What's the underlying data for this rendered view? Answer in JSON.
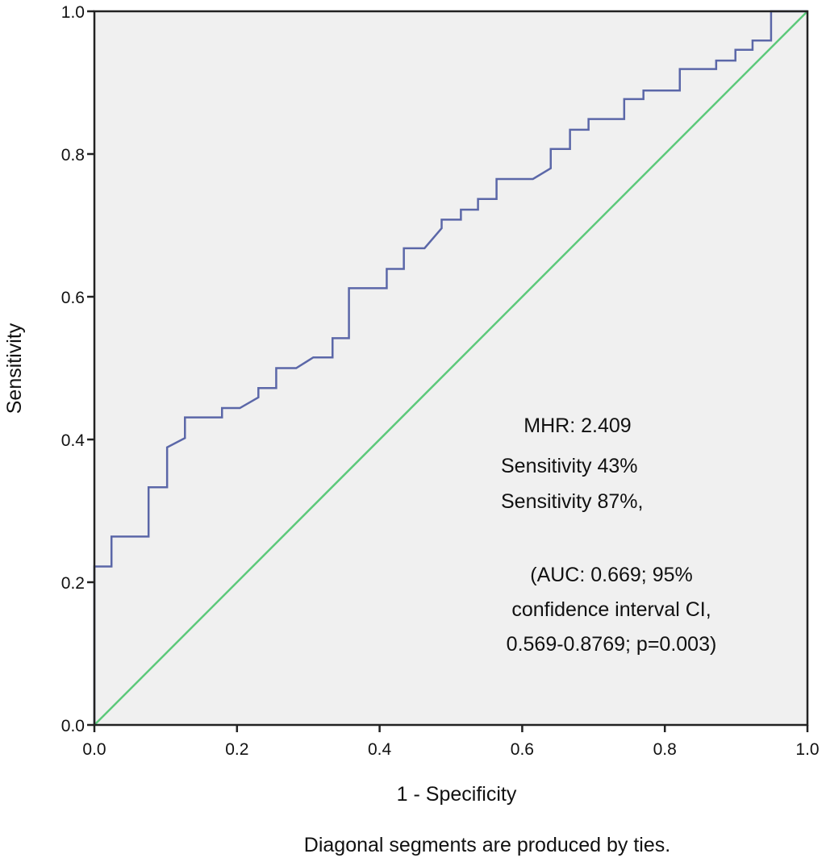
{
  "chart_data": {
    "type": "line",
    "title": "",
    "xlabel": "1 - Specificity",
    "ylabel": "Sensitivity",
    "xlim": [
      0.0,
      1.0
    ],
    "ylim": [
      0.0,
      1.0
    ],
    "xticks": [
      "0.0",
      "0.2",
      "0.4",
      "0.6",
      "0.8",
      "1.0"
    ],
    "yticks": [
      "0.0",
      "0.2",
      "0.4",
      "0.6",
      "0.8",
      "1.0"
    ],
    "grid": false,
    "colors": {
      "roc": "#5b67a8",
      "reference": "#5cc97a",
      "plot_background": "#f0f0f0",
      "axis": "#222222"
    },
    "series": [
      {
        "name": "ROC curve",
        "points": [
          [
            0.0,
            0.0
          ],
          [
            0.0,
            0.222
          ],
          [
            0.024,
            0.222
          ],
          [
            0.024,
            0.264
          ],
          [
            0.076,
            0.264
          ],
          [
            0.076,
            0.333
          ],
          [
            0.102,
            0.333
          ],
          [
            0.102,
            0.389
          ],
          [
            0.127,
            0.402
          ],
          [
            0.127,
            0.431
          ],
          [
            0.179,
            0.431
          ],
          [
            0.179,
            0.444
          ],
          [
            0.204,
            0.444
          ],
          [
            0.23,
            0.459
          ],
          [
            0.23,
            0.472
          ],
          [
            0.255,
            0.472
          ],
          [
            0.255,
            0.5
          ],
          [
            0.283,
            0.5
          ],
          [
            0.307,
            0.515
          ],
          [
            0.334,
            0.515
          ],
          [
            0.334,
            0.542
          ],
          [
            0.357,
            0.542
          ],
          [
            0.357,
            0.612
          ],
          [
            0.41,
            0.612
          ],
          [
            0.41,
            0.639
          ],
          [
            0.434,
            0.639
          ],
          [
            0.434,
            0.668
          ],
          [
            0.463,
            0.668
          ],
          [
            0.487,
            0.696
          ],
          [
            0.487,
            0.708
          ],
          [
            0.514,
            0.708
          ],
          [
            0.514,
            0.722
          ],
          [
            0.538,
            0.722
          ],
          [
            0.538,
            0.737
          ],
          [
            0.564,
            0.737
          ],
          [
            0.564,
            0.765
          ],
          [
            0.615,
            0.765
          ],
          [
            0.64,
            0.78
          ],
          [
            0.64,
            0.807
          ],
          [
            0.667,
            0.807
          ],
          [
            0.667,
            0.834
          ],
          [
            0.693,
            0.834
          ],
          [
            0.693,
            0.849
          ],
          [
            0.743,
            0.849
          ],
          [
            0.743,
            0.877
          ],
          [
            0.77,
            0.877
          ],
          [
            0.77,
            0.889
          ],
          [
            0.821,
            0.889
          ],
          [
            0.821,
            0.919
          ],
          [
            0.872,
            0.919
          ],
          [
            0.872,
            0.931
          ],
          [
            0.899,
            0.931
          ],
          [
            0.899,
            0.946
          ],
          [
            0.923,
            0.946
          ],
          [
            0.923,
            0.959
          ],
          [
            0.949,
            0.959
          ],
          [
            0.949,
            1.0
          ],
          [
            1.0,
            1.0
          ]
        ]
      },
      {
        "name": "Reference line",
        "points": [
          [
            0.0,
            0.0
          ],
          [
            1.0,
            1.0
          ]
        ]
      }
    ],
    "annotations": [
      "MHR: 2.409",
      "Sensitivity 43%",
      "Sensitivity 87%,",
      "(AUC: 0.669; 95%",
      "confidence interval CI,",
      "0.569-0.8769; p=0.003)"
    ],
    "footnote": "Diagonal segments are produced by ties."
  }
}
